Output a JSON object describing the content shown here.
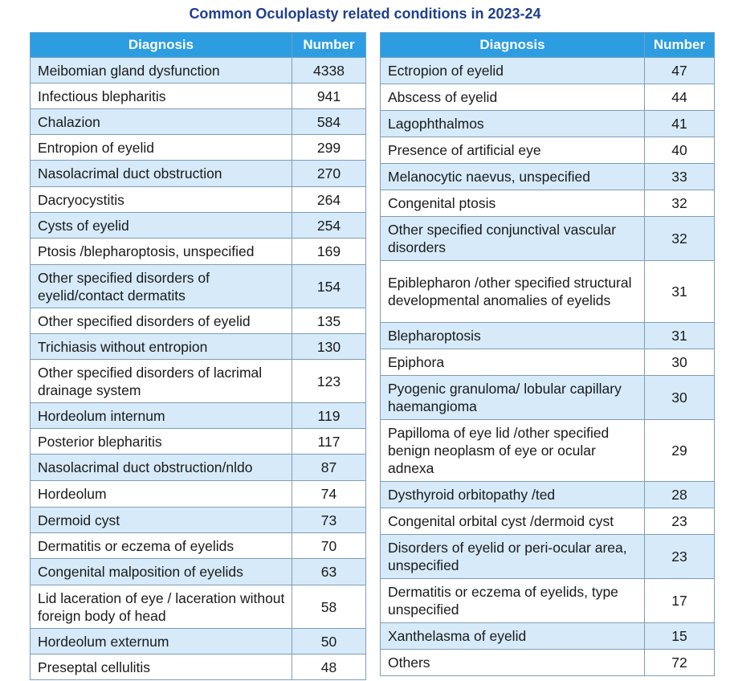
{
  "title": "Common Oculoplasty related conditions in 2023-24",
  "colors": {
    "header": "#2d9de2",
    "stripe": "#d6eaf9",
    "title": "#1f3f8f"
  },
  "headers": {
    "diagnosis": "Diagnosis",
    "number": "Number"
  },
  "left_rows": [
    {
      "diagnosis": "Meibomian gland dysfunction",
      "number": "4338"
    },
    {
      "diagnosis": "Infectious blepharitis",
      "number": "941"
    },
    {
      "diagnosis": "Chalazion",
      "number": "584"
    },
    {
      "diagnosis": "Entropion of eyelid",
      "number": "299"
    },
    {
      "diagnosis": "Nasolacrimal duct obstruction",
      "number": "270"
    },
    {
      "diagnosis": "Dacryocystitis",
      "number": "264"
    },
    {
      "diagnosis": "Cysts of eyelid",
      "number": "254"
    },
    {
      "diagnosis": "Ptosis /blepharoptosis, unspecified",
      "number": "169"
    },
    {
      "diagnosis": "Other specified disorders of eyelid/contact dermatits",
      "number": "154"
    },
    {
      "diagnosis": "Other specified disorders of eyelid",
      "number": "135"
    },
    {
      "diagnosis": "Trichiasis without entropion",
      "number": "130"
    },
    {
      "diagnosis": "Other specified disorders of lacrimal drainage system",
      "number": "123"
    },
    {
      "diagnosis": "Hordeolum internum",
      "number": "119"
    },
    {
      "diagnosis": "Posterior blepharitis",
      "number": "117"
    },
    {
      "diagnosis": "Nasolacrimal duct obstruction/nldo",
      "number": "87"
    },
    {
      "diagnosis": "Hordeolum",
      "number": "74"
    },
    {
      "diagnosis": "Dermoid cyst",
      "number": "73"
    },
    {
      "diagnosis": "Dermatitis or eczema of eyelids",
      "number": "70"
    },
    {
      "diagnosis": "Congenital malposition of eyelids",
      "number": "63"
    },
    {
      "diagnosis": "Lid laceration of eye / laceration without foreign body of head",
      "number": "58"
    },
    {
      "diagnosis": "Hordeolum externum",
      "number": "50"
    },
    {
      "diagnosis": "Preseptal cellulitis",
      "number": "48"
    }
  ],
  "right_rows": [
    {
      "diagnosis": "Ectropion of eyelid",
      "number": "47"
    },
    {
      "diagnosis": "Abscess of eyelid",
      "number": "44"
    },
    {
      "diagnosis": "Lagophthalmos",
      "number": "41"
    },
    {
      "diagnosis": "Presence of artificial eye",
      "number": "40"
    },
    {
      "diagnosis": "Melanocytic naevus, unspecified",
      "number": "33"
    },
    {
      "diagnosis": "Congenital ptosis",
      "number": "32"
    },
    {
      "diagnosis": "Other specified conjunctival vascular disorders",
      "number": "32"
    },
    {
      "diagnosis": "Epiblepharon /other specified structural developmental anomalies of eyelids",
      "number": "31"
    },
    {
      "diagnosis": "Blepharoptosis",
      "number": "31"
    },
    {
      "diagnosis": "Epiphora",
      "number": "30"
    },
    {
      "diagnosis": "Pyogenic granuloma/ lobular capillary haemangioma",
      "number": "30"
    },
    {
      "diagnosis": "Papilloma of eye lid /other specified benign neoplasm of eye or ocular adnexa",
      "number": "29"
    },
    {
      "diagnosis": "Dysthyroid orbitopathy /ted",
      "number": "28"
    },
    {
      "diagnosis": "Congenital orbital cyst /dermoid cyst",
      "number": "23"
    },
    {
      "diagnosis": "Disorders of eyelid or peri-ocular area, unspecified",
      "number": "23"
    },
    {
      "diagnosis": "Dermatitis or eczema of eyelids, type unspecified",
      "number": "17"
    },
    {
      "diagnosis": "Xanthelasma of eyelid",
      "number": "15"
    },
    {
      "diagnosis": "Others",
      "number": "72"
    }
  ]
}
